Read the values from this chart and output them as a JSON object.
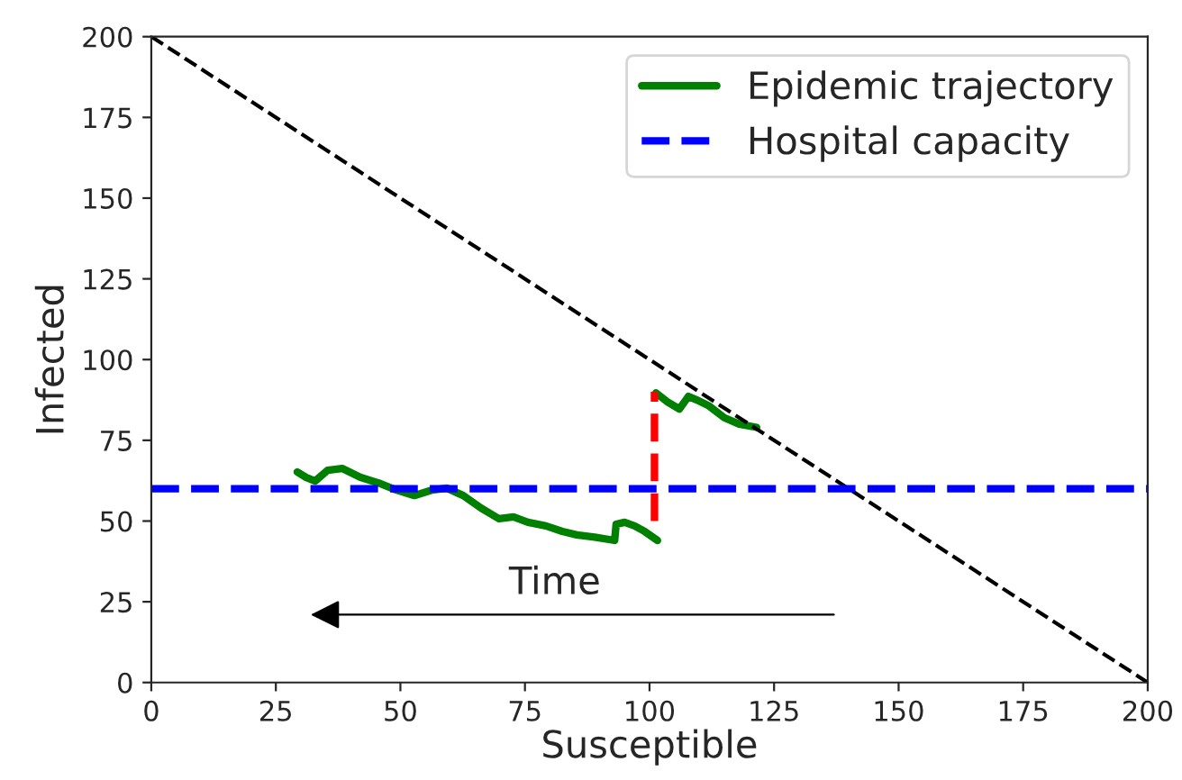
{
  "chart_data": {
    "type": "line",
    "xlabel": "Susceptible",
    "ylabel": "Infected",
    "xlim": [
      0,
      200
    ],
    "ylim": [
      0,
      200
    ],
    "xticks": [
      0,
      25,
      50,
      75,
      100,
      125,
      150,
      175,
      200
    ],
    "yticks": [
      0,
      25,
      50,
      75,
      100,
      125,
      150,
      175,
      200
    ],
    "grid": false,
    "legend": "top right",
    "annotations": [
      "Time"
    ],
    "ref_lines": [
      {
        "axis": "y",
        "value": 60,
        "label": "Hospital capacity",
        "color": "#0000ff",
        "line_style": "dashed"
      }
    ],
    "series": [
      {
        "name": "Epidemic trajectory",
        "color": "#008000",
        "line_style": "solid",
        "x": [
          121.5,
          118,
          115,
          111.8,
          109.5,
          107.8,
          106,
          103.5,
          101.3,
          null,
          101.6,
          99,
          97,
          95,
          93.3,
          93,
          89,
          85.4,
          82.5,
          79.2,
          75.6,
          72.7,
          69.8,
          66.2,
          62.6,
          59.3,
          56.4,
          52.8,
          49.2,
          45.6,
          42,
          38.3,
          35.4,
          32.9,
          31.1,
          29.3
        ],
        "values": [
          79,
          80,
          82,
          85.8,
          87.5,
          88.6,
          84.7,
          87,
          89.7,
          null,
          44,
          46.8,
          48.5,
          49.6,
          49,
          44,
          45,
          45.7,
          46.8,
          48.5,
          49.6,
          51.3,
          50.7,
          54,
          57.9,
          60.2,
          59.6,
          57.9,
          59.6,
          61.8,
          63.5,
          66.3,
          65.7,
          62.4,
          63.5,
          65.2
        ]
      },
      {
        "color": "#ff0000",
        "line_style": "dashed",
        "x": [
          101,
          101
        ],
        "values": [
          50,
          90
        ]
      },
      {
        "color": "#000000",
        "line_style": "dashed",
        "x": [
          0,
          200
        ],
        "values": [
          200,
          0
        ]
      }
    ]
  }
}
